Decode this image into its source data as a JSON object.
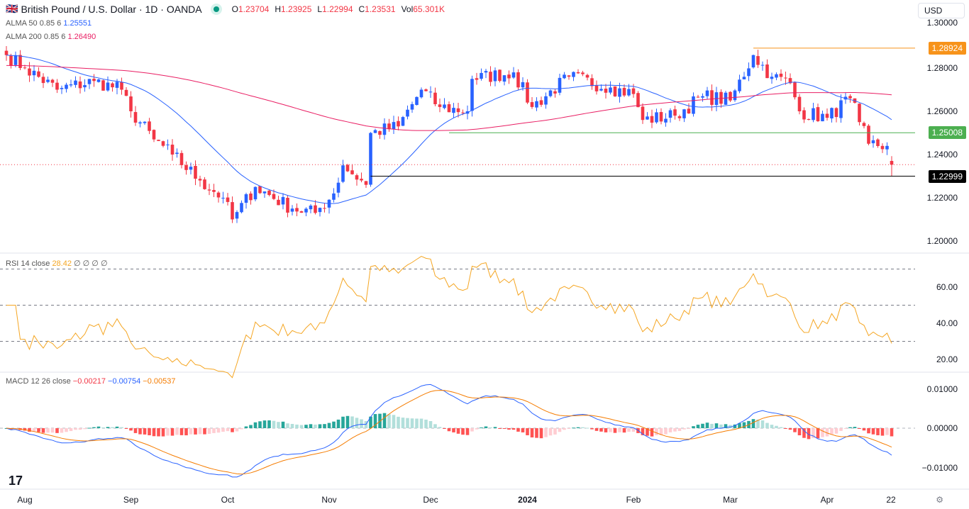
{
  "header": {
    "symbol": "British Pound / U.S. Dollar · 1D · OANDA",
    "o_label": "O",
    "o": "1.23704",
    "h_label": "H",
    "h": "1.23925",
    "l_label": "L",
    "l": "1.22994",
    "c_label": "C",
    "c": "1.23531",
    "vol_label": "Vol",
    "vol": "65.301K",
    "currency": "USD"
  },
  "indicators": {
    "alma50": {
      "label": "ALMA 50 0.85 6",
      "value": "1.25551",
      "color": "#2962ff"
    },
    "alma200": {
      "label": "ALMA 200 0.85 6",
      "value": "1.26490",
      "color": "#e91e63"
    },
    "rsi": {
      "label": "RSI 14 close",
      "value": "28.42",
      "extra": "∅ ∅ ∅ ∅",
      "color": "#f5a623"
    },
    "macd": {
      "label": "MACD 12 26 close",
      "hist": "−0.00217",
      "macd": "−0.00754",
      "signal": "−0.00537"
    }
  },
  "price_axis": [
    "1.30000",
    "1.28000",
    "1.26000",
    "1.24000",
    "1.22000",
    "1.20000"
  ],
  "rsi_axis": [
    "60.00",
    "40.00",
    "20.00"
  ],
  "macd_axis": [
    "0.01000",
    "0.00000",
    "−0.01000"
  ],
  "time_axis": [
    "Aug",
    "Sep",
    "Oct",
    "Nov",
    "Dec",
    "2024",
    "Feb",
    "Mar",
    "Apr",
    "22"
  ],
  "levels": [
    {
      "value": "1.28924",
      "color": "#f7931a"
    },
    {
      "value": "1.25008",
      "color": "#4caf50"
    },
    {
      "value": "1.22999",
      "color": "#000000"
    }
  ],
  "chart_data": {
    "type": "candlestick",
    "up_color": "#2962ff",
    "down_color": "#f23645",
    "price_range": [
      1.2,
      1.3
    ],
    "close_keypoints": [
      [
        "2023-07-26",
        1.286
      ],
      [
        "2023-08-01",
        1.28
      ],
      [
        "2023-08-10",
        1.27
      ],
      [
        "2023-08-22",
        1.274
      ],
      [
        "2023-08-30",
        1.27
      ],
      [
        "2023-09-01",
        1.26
      ],
      [
        "2023-09-08",
        1.247
      ],
      [
        "2023-09-14",
        1.24
      ],
      [
        "2023-09-22",
        1.228
      ],
      [
        "2023-09-29",
        1.22
      ],
      [
        "2023-10-03",
        1.21
      ],
      [
        "2023-10-10",
        1.225
      ],
      [
        "2023-10-20",
        1.215
      ],
      [
        "2023-10-27",
        1.213
      ],
      [
        "2023-11-02",
        1.222
      ],
      [
        "2023-11-06",
        1.235
      ],
      [
        "2023-11-13",
        1.226
      ],
      [
        "2023-11-14",
        1.25
      ],
      [
        "2023-11-22",
        1.253
      ],
      [
        "2023-11-29",
        1.27
      ],
      [
        "2023-12-05",
        1.262
      ],
      [
        "2023-12-13",
        1.26
      ],
      [
        "2023-12-14",
        1.275
      ],
      [
        "2023-12-27",
        1.278
      ],
      [
        "2024-01-02",
        1.262
      ],
      [
        "2024-01-12",
        1.276
      ],
      [
        "2024-01-25",
        1.271
      ],
      [
        "2024-02-01",
        1.268
      ],
      [
        "2024-02-05",
        1.256
      ],
      [
        "2024-02-14",
        1.258
      ],
      [
        "2024-02-22",
        1.267
      ],
      [
        "2024-03-01",
        1.265
      ],
      [
        "2024-03-08",
        1.286
      ],
      [
        "2024-03-14",
        1.276
      ],
      [
        "2024-03-20",
        1.273
      ],
      [
        "2024-03-22",
        1.26
      ],
      [
        "2024-04-01",
        1.257
      ],
      [
        "2024-04-08",
        1.266
      ],
      [
        "2024-04-10",
        1.255
      ],
      [
        "2024-04-12",
        1.245
      ],
      [
        "2024-04-18",
        1.244
      ],
      [
        "2024-04-19",
        1.23531
      ]
    ],
    "last_bar": {
      "open": 1.23704,
      "high": 1.23925,
      "low": 1.22994,
      "close": 1.23531
    },
    "rsi_levels": [
      70,
      50,
      30
    ],
    "rsi_range": [
      20,
      70
    ],
    "macd_range": [
      -0.01,
      0.01
    ]
  }
}
